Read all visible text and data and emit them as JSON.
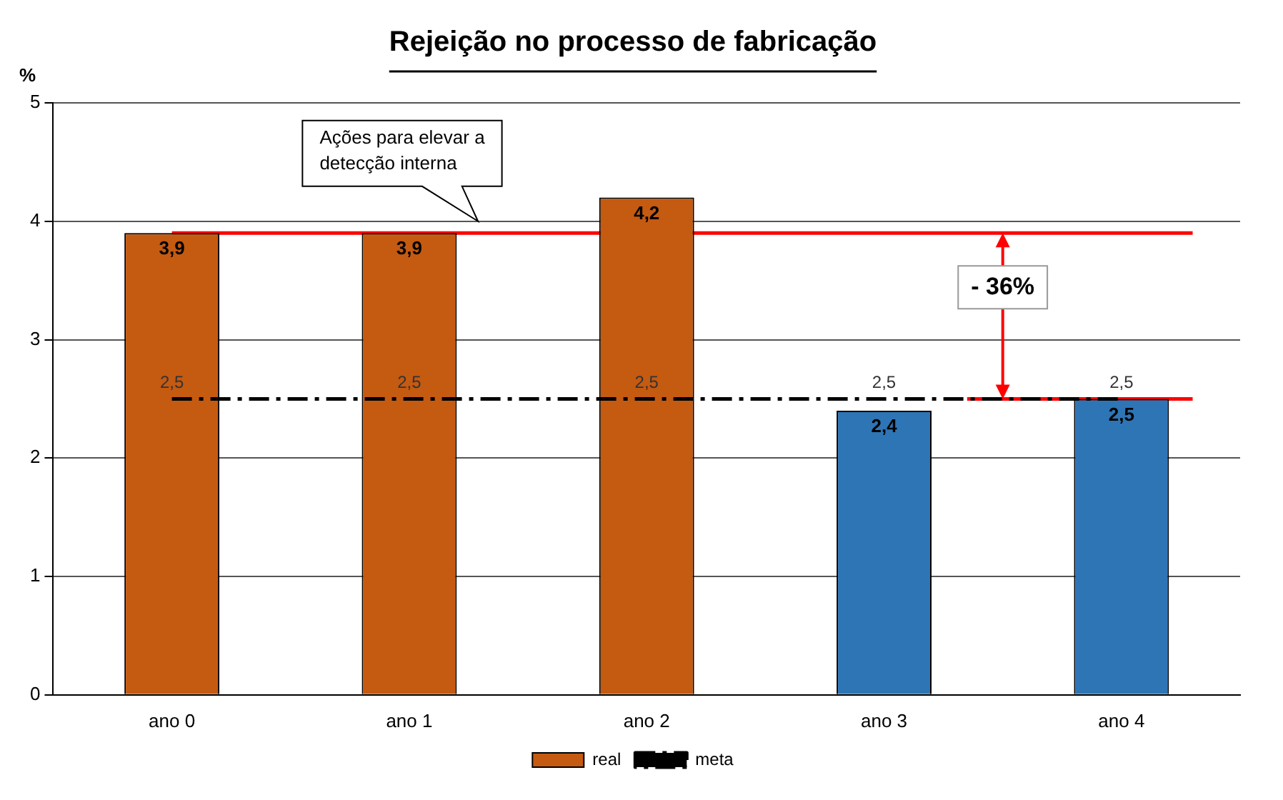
{
  "chart_data": {
    "type": "bar",
    "title": "Rejeição no processo de fabricação",
    "ylabel": "%",
    "categories": [
      "ano 0",
      "ano 1",
      "ano 2",
      "ano 3",
      "ano 4"
    ],
    "series": [
      {
        "name": "real",
        "color": "#c55a11",
        "colors": [
          "#c55a11",
          "#c55a11",
          "#c55a11",
          "#2e75b6",
          "#2e75b6"
        ],
        "values": [
          3.9,
          3.9,
          4.2,
          2.4,
          2.5
        ],
        "value_labels": [
          "3,9",
          "3,9",
          "4,2",
          "2,4",
          "2,5"
        ]
      },
      {
        "name": "meta",
        "type": "line",
        "color": "#000000",
        "line_style": "dashed",
        "marker": "none",
        "values": [
          2.5,
          2.5,
          2.5,
          2.5,
          2.5
        ],
        "value_labels": [
          "2,5",
          "2,5",
          "2,5",
          "2,5",
          "2,5"
        ]
      }
    ],
    "ylim": [
      0,
      5
    ],
    "yticks": [
      0,
      1,
      2,
      3,
      4,
      5
    ],
    "grid": "y",
    "legend": "bottom",
    "ref_lines": [
      {
        "axis": "y",
        "value": 3.9,
        "color": "#ff0000"
      },
      {
        "axis": "y",
        "value": 2.5,
        "color": "#ff0000"
      }
    ],
    "annotations": [
      "Ações para elevar a detecção interna",
      "- 36%"
    ]
  }
}
